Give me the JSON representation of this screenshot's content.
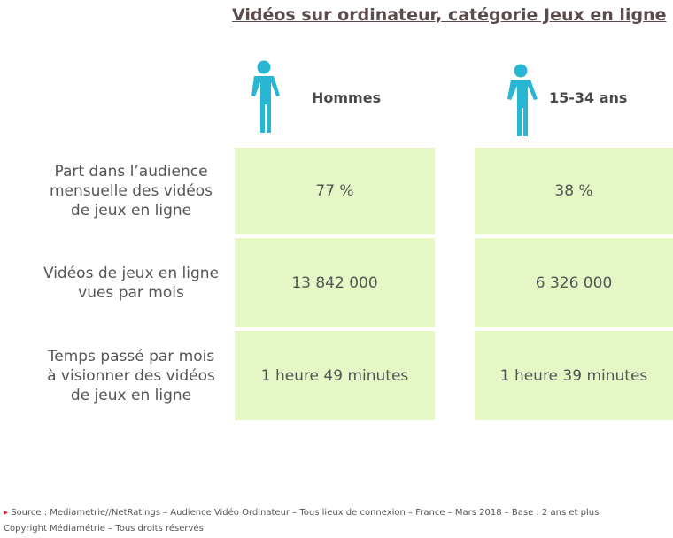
{
  "header": {
    "title": "Vidéos sur ordinateur, catégorie Jeux en ligne"
  },
  "table": {
    "columns": [
      "Hommes",
      "15-34 ans"
    ],
    "rows": [
      {
        "label": [
          "Part dans l’audience",
          "mensuelle des vidéos",
          "de jeux en ligne"
        ],
        "cells": [
          "77 %",
          "38 %"
        ]
      },
      {
        "label": [
          "Vidéos de jeux en ligne",
          "vues par mois"
        ],
        "cells": [
          "13 842 000",
          "6 326 000"
        ]
      },
      {
        "label": [
          "Temps passé par mois",
          "à visionner des vidéos",
          "de jeux en ligne"
        ],
        "cells": [
          "1 heure 49 minutes",
          "1 heure 39 minutes"
        ]
      }
    ]
  },
  "footer": {
    "source": "Source : Mediametrie//NetRatings   – Audience Vidéo Ordinateur – Tous lieux de connexion – France – Mars 2018 –  Base : 2 ans et plus",
    "copyright": "Copyright Médiamétrie  – Tous droits réservés"
  }
}
